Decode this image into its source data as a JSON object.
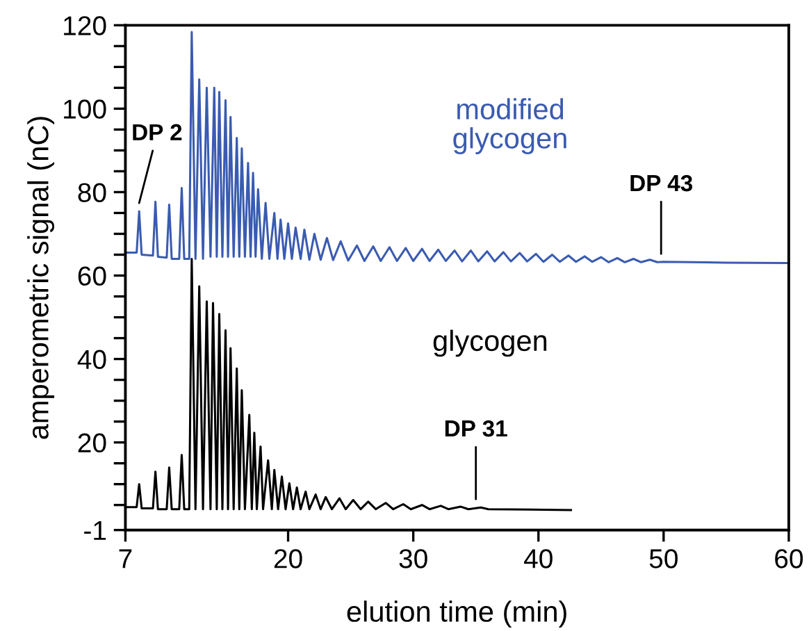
{
  "chart_data": {
    "type": "line",
    "xlabel": "elution time (min)",
    "ylabel": "amperometric signal (nC)",
    "xlim": [
      7,
      60
    ],
    "xticks": [
      7,
      20,
      30,
      40,
      50,
      60
    ],
    "ylim": [
      -1,
      120
    ],
    "yticks": [
      -1,
      {
        "value": 5,
        "label": null
      },
      {
        "value": 10,
        "label": null
      },
      {
        "value": 15,
        "label": null
      },
      20,
      {
        "value": 25,
        "label": null
      },
      {
        "value": 30,
        "label": null
      },
      {
        "value": 35,
        "label": null
      },
      40,
      {
        "value": 45,
        "label": null
      },
      {
        "value": 50,
        "label": null
      },
      {
        "value": 55,
        "label": null
      },
      60,
      {
        "value": 65,
        "label": null
      },
      {
        "value": 70,
        "label": null
      },
      {
        "value": 75,
        "label": null
      },
      80,
      {
        "value": 85,
        "label": null
      },
      {
        "value": 90,
        "label": null
      },
      {
        "value": 95,
        "label": null
      },
      100,
      {
        "value": 105,
        "label": null
      },
      {
        "value": 110,
        "label": null
      },
      {
        "value": 115,
        "label": null
      },
      120
    ],
    "grid": false,
    "marker": "none",
    "line_style": "solid",
    "series": [
      {
        "name": "modified\nglycogen",
        "color": "#3a5bb0",
        "x": [
          7,
          7.9,
          8.1,
          8.3,
          9.2,
          9.4,
          9.6,
          10.3,
          10.5,
          10.7,
          11.3,
          11.5,
          11.7,
          12.1,
          12.3,
          12.6,
          12.9,
          13.2,
          13.5,
          13.8,
          14.1,
          14.3,
          14.5,
          14.75,
          15.0,
          15.2,
          15.4,
          15.65,
          15.9,
          16.1,
          16.3,
          16.55,
          16.8,
          17.0,
          17.2,
          17.4,
          17.6,
          17.9,
          18.2,
          18.5,
          18.9,
          19.15,
          19.4,
          19.7,
          20.0,
          20.3,
          20.6,
          21.0,
          21.3,
          21.7,
          22.1,
          22.6,
          23.1,
          23.6,
          24.2,
          24.8,
          25.5,
          26.1,
          26.8,
          27.4,
          28.1,
          28.7,
          29.4,
          30.0,
          30.7,
          31.3,
          32.0,
          32.6,
          33.3,
          33.9,
          34.6,
          35.2,
          35.9,
          36.5,
          37.2,
          37.8,
          38.5,
          39.1,
          39.8,
          40.4,
          41.1,
          41.7,
          42.4,
          43.0,
          43.7,
          44.3,
          45.0,
          45.6,
          46.3,
          46.9,
          47.6,
          48.2,
          48.9,
          49.5,
          50,
          55,
          60
        ],
        "values": [
          65.5,
          65.5,
          75.4,
          65,
          64.8,
          77.7,
          64.5,
          64.3,
          77,
          64,
          64,
          81,
          64,
          64,
          118.4,
          64,
          107,
          64,
          105,
          64.5,
          105,
          64.5,
          104,
          64.5,
          102,
          64.5,
          98,
          64.5,
          93,
          64.5,
          90.5,
          64.5,
          87,
          64.5,
          84.6,
          64.5,
          80.7,
          64,
          77.4,
          64,
          75,
          64,
          73.4,
          64,
          72.5,
          64,
          71.5,
          64,
          71,
          63.8,
          70,
          63.8,
          69,
          63.7,
          68.2,
          63.6,
          67.2,
          63.5,
          67,
          63.5,
          66.8,
          63.5,
          66.6,
          63.5,
          66.4,
          63.5,
          66.2,
          63.5,
          66,
          63.4,
          66,
          63.4,
          65.8,
          63.4,
          65.6,
          63.4,
          65.4,
          63.4,
          65.2,
          63.3,
          65,
          63.3,
          64.8,
          63.3,
          64.6,
          63.3,
          64.4,
          63.2,
          64.2,
          63.2,
          64,
          63.2,
          63.8,
          63.2,
          63.3,
          63.1,
          63
        ]
      },
      {
        "name": "glycogen",
        "color": "#000000",
        "x": [
          7,
          7.9,
          8.1,
          8.3,
          9.2,
          9.4,
          9.6,
          10.3,
          10.5,
          10.7,
          11.3,
          11.5,
          11.7,
          12.1,
          12.3,
          12.6,
          12.9,
          13.2,
          13.5,
          13.8,
          14.0,
          14.3,
          14.5,
          14.75,
          15.0,
          15.2,
          15.4,
          15.65,
          15.9,
          16.1,
          16.3,
          16.55,
          16.9,
          17.1,
          17.3,
          17.5,
          17.8,
          18.0,
          18.4,
          18.7,
          18.9,
          19.2,
          19.5,
          19.8,
          20.1,
          20.4,
          20.7,
          21.0,
          21.4,
          21.7,
          22.2,
          22.6,
          23.0,
          23.5,
          24.1,
          24.6,
          25.2,
          25.8,
          26.4,
          27.0,
          27.8,
          28.4,
          29.2,
          29.8,
          30.7,
          31.3,
          32.2,
          32.8,
          33.8,
          34.4,
          35.4,
          36,
          42.6
        ],
        "values": [
          4.5,
          4.5,
          10,
          4.2,
          4.2,
          13,
          4,
          4,
          14,
          4,
          4,
          17,
          4,
          4,
          64,
          4,
          57.4,
          4,
          53.8,
          4,
          53.4,
          4,
          50.8,
          4,
          46.9,
          4,
          42.6,
          4,
          37.7,
          4,
          32.5,
          4,
          26.6,
          4,
          22.3,
          4,
          19,
          4,
          15.7,
          4,
          13.4,
          4,
          11.8,
          4,
          10.2,
          4,
          9.2,
          4,
          8.2,
          4,
          7.5,
          4,
          6.9,
          4,
          6.6,
          4,
          6.2,
          4,
          5.8,
          4,
          5.5,
          4,
          5.2,
          4,
          5,
          4,
          4.8,
          4,
          4.6,
          4,
          4.4,
          4,
          3.8
        ]
      }
    ],
    "annotations": [
      {
        "text": "DP 2",
        "x": 8.1,
        "y": 75.4
      },
      {
        "text": "DP 43",
        "x": 49.8,
        "y": 63.2
      },
      {
        "text": "DP 31",
        "x": 35.0,
        "y": 4.4
      }
    ]
  }
}
